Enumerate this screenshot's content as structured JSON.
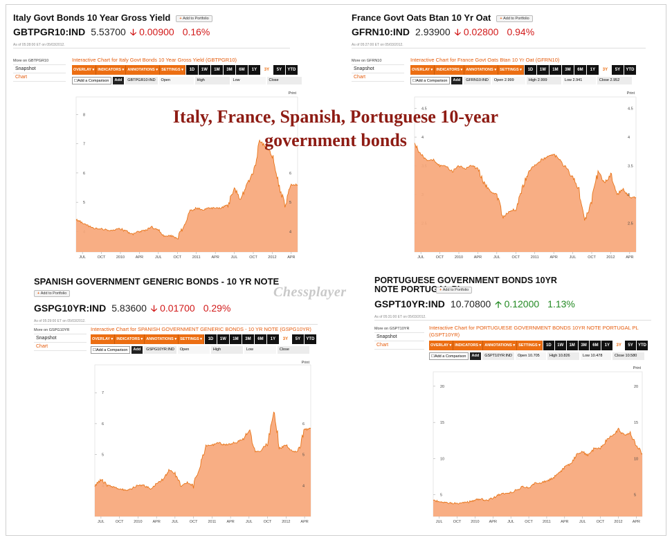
{
  "overlay_title": "Italy, France, Spanish, Portuguese 10-year government bonds",
  "watermark": "Chessplayer",
  "colors": {
    "accent": "#ec6e12",
    "fill": "#f7a77a",
    "line": "#e8751a",
    "down": "#d21a1a",
    "up": "#238a23",
    "title": "#8e1c14"
  },
  "ui": {
    "add_to_portfolio": "Add to Portfolio",
    "snapshot": "Snapshot",
    "chart": "Chart",
    "print": "Print",
    "add_comparison": "Add a Comparison",
    "add": "Add",
    "toolbar": [
      "OVERLAY",
      "INDICATORS",
      "ANNOTATIONS",
      "SETTINGS"
    ],
    "ranges": [
      "1D",
      "1W",
      "1M",
      "3M",
      "6M",
      "1Y",
      "3Y",
      "5Y",
      "YTD"
    ],
    "active_range": "3Y"
  },
  "panels": [
    {
      "title": "Italy Govt Bonds 10 Year Gross Yield",
      "symbol": "GBTPGR10:IND",
      "price": "5.53700",
      "change": "0.00900",
      "pct": "0.16%",
      "direction": "down",
      "asof": "As of 05:28:00 ET on 05/03/2012.",
      "more": "More on GBTPGR10",
      "chart_link": "Interactive Chart for Italy Govt Bonds 10 Year Gross Yield (GBTPGR10)",
      "cmp_symbol": "GBTPGR10:IND",
      "open": "Open",
      "high": "High",
      "low": "Low",
      "close": "Close",
      "ticks_y": [
        "8",
        "7",
        "6",
        "5",
        "4"
      ],
      "ticks_x": [
        "JUL",
        "OCT",
        "2010",
        "APR",
        "JUL",
        "OCT",
        "2011",
        "APR",
        "JUL",
        "OCT",
        "2012",
        "APR"
      ],
      "right_labels": [
        "6",
        "5",
        "4"
      ]
    },
    {
      "title": "France Govt Oats Btan 10 Yr Oat",
      "symbol": "GFRN10:IND",
      "price": "2.93900",
      "change": "0.02800",
      "pct": "0.94%",
      "direction": "down",
      "asof": "As of 05:27:00 ET on 05/03/2012.",
      "more": "More on GFRN10",
      "chart_link": "Interactive Chart for France Govt Oats Btan 10 Yr Oat (GFRN10)",
      "cmp_symbol": "GFRN10:IND",
      "open": "Open 2.999",
      "high": "High 2.999",
      "low": "Low 2.941",
      "close": "Close 2.952",
      "ticks_y": [
        "4.5",
        "4",
        "3.5",
        "3",
        "2.5"
      ],
      "ticks_x": [
        "JUL",
        "OCT",
        "2010",
        "APR",
        "JUL",
        "OCT",
        "2011",
        "APR",
        "JUL",
        "OCT",
        "2012",
        "APR"
      ],
      "right_labels": [
        "4.5",
        "4",
        "3.5",
        "3",
        "2.5"
      ]
    },
    {
      "title": "SPANISH GOVERNMENT GENERIC BONDS - 10 YR NOTE",
      "symbol": "GSPG10YR:IND",
      "price": "5.83600",
      "change": "0.01700",
      "pct": "0.29%",
      "direction": "down",
      "asof": "As of 05:29:00 ET on 05/03/2012.",
      "more": "More on GSPG10YR",
      "chart_link": "Interactive Chart for SPANISH GOVERNMENT GENERIC BONDS - 10 YR NOTE (GSPG10YR)",
      "cmp_symbol": "GSPG10YR:IND",
      "open": "Open",
      "high": "High",
      "low": "Low",
      "close": "Close",
      "ticks_y": [
        "7",
        "6",
        "5",
        "4"
      ],
      "ticks_x": [
        "JUL",
        "OCT",
        "2010",
        "APR",
        "JUL",
        "OCT",
        "2011",
        "APR",
        "JUL",
        "OCT",
        "2012",
        "APR"
      ],
      "right_labels": [
        "6",
        "5",
        "4"
      ]
    },
    {
      "title": "PORTUGUESE GOVERNMENT BONDS 10YR NOTE PORTUGAL PL",
      "symbol": "GSPT10YR:IND",
      "price": "10.70800",
      "change": "0.12000",
      "pct": "1.13%",
      "direction": "up",
      "asof": "As of 05:31:00 ET on 05/03/2012.",
      "more": "More on GSPT10YR",
      "chart_link": "Interactive Chart for PORTUGUESE GOVERNMENT BONDS 10YR NOTE PORTUGAL PL (GSPT10YR)",
      "cmp_symbol": "GSPT10YR:IND",
      "open": "Open 10.705",
      "high": "High 10.826",
      "low": "Low 10.478",
      "close": "Close 10.580",
      "ticks_y": [
        "20",
        "15",
        "10",
        "5"
      ],
      "ticks_x": [
        "JUL",
        "OCT",
        "2010",
        "APR",
        "JUL",
        "OCT",
        "2011",
        "APR",
        "JUL",
        "OCT",
        "2012",
        "APR"
      ],
      "right_labels": [
        "20",
        "15",
        "10",
        "5"
      ]
    }
  ],
  "chart_data": [
    {
      "type": "area",
      "series_name": "GBTPGR10:IND",
      "ylim": [
        3.3,
        8.6
      ],
      "x": [
        "2009-06",
        "2009-07",
        "2009-08",
        "2009-09",
        "2009-10",
        "2009-11",
        "2009-12",
        "2010-01",
        "2010-02",
        "2010-03",
        "2010-04",
        "2010-05",
        "2010-06",
        "2010-07",
        "2010-08",
        "2010-09",
        "2010-10",
        "2010-11",
        "2010-12",
        "2011-01",
        "2011-02",
        "2011-03",
        "2011-04",
        "2011-05",
        "2011-06",
        "2011-07",
        "2011-08",
        "2011-09",
        "2011-10",
        "2011-11",
        "2011-12",
        "2012-01",
        "2012-02",
        "2012-03",
        "2012-04",
        "2012-05"
      ],
      "y": [
        4.4,
        4.3,
        4.2,
        4.1,
        4.1,
        4.05,
        4.05,
        4.1,
        4.0,
        3.9,
        4.0,
        4.05,
        4.15,
        4.05,
        3.85,
        3.85,
        3.75,
        4.2,
        4.7,
        4.8,
        4.75,
        4.8,
        4.8,
        4.8,
        4.9,
        5.5,
        5.1,
        5.6,
        6.0,
        7.1,
        6.9,
        6.6,
        5.6,
        4.9,
        5.6,
        5.6
      ]
    },
    {
      "type": "area",
      "series_name": "GFRN10:IND",
      "ylim": [
        2.0,
        4.7
      ],
      "x": [
        "2009-06",
        "2009-07",
        "2009-08",
        "2009-09",
        "2009-10",
        "2009-11",
        "2009-12",
        "2010-01",
        "2010-02",
        "2010-03",
        "2010-04",
        "2010-05",
        "2010-06",
        "2010-07",
        "2010-08",
        "2010-09",
        "2010-10",
        "2010-11",
        "2010-12",
        "2011-01",
        "2011-02",
        "2011-03",
        "2011-04",
        "2011-05",
        "2011-06",
        "2011-07",
        "2011-08",
        "2011-09",
        "2011-10",
        "2011-11",
        "2011-12",
        "2012-01",
        "2012-02",
        "2012-03",
        "2012-04",
        "2012-05"
      ],
      "y": [
        3.9,
        3.7,
        3.6,
        3.6,
        3.5,
        3.5,
        3.4,
        3.5,
        3.45,
        3.5,
        3.45,
        3.2,
        3.05,
        3.0,
        2.6,
        2.7,
        2.75,
        3.1,
        3.4,
        3.5,
        3.6,
        3.65,
        3.7,
        3.6,
        3.45,
        3.3,
        3.05,
        2.55,
        2.9,
        3.4,
        3.2,
        3.35,
        3.0,
        3.1,
        2.95,
        2.95
      ]
    },
    {
      "type": "area",
      "series_name": "GSPG10YR:IND",
      "ylim": [
        3.0,
        7.9
      ],
      "x": [
        "2009-06",
        "2009-07",
        "2009-08",
        "2009-09",
        "2009-10",
        "2009-11",
        "2009-12",
        "2010-01",
        "2010-02",
        "2010-03",
        "2010-04",
        "2010-05",
        "2010-06",
        "2010-07",
        "2010-08",
        "2010-09",
        "2010-10",
        "2010-11",
        "2010-12",
        "2011-01",
        "2011-02",
        "2011-03",
        "2011-04",
        "2011-05",
        "2011-06",
        "2011-07",
        "2011-08",
        "2011-09",
        "2011-10",
        "2011-11",
        "2011-12",
        "2012-01",
        "2012-02",
        "2012-03",
        "2012-04",
        "2012-05"
      ],
      "y": [
        4.0,
        4.2,
        4.0,
        3.95,
        3.9,
        3.85,
        3.9,
        4.0,
        4.0,
        3.9,
        4.05,
        4.2,
        4.5,
        4.4,
        4.0,
        4.1,
        4.0,
        4.6,
        5.3,
        5.3,
        5.4,
        5.3,
        5.35,
        5.4,
        5.5,
        5.8,
        5.1,
        5.1,
        5.4,
        6.5,
        5.2,
        5.3,
        5.1,
        5.1,
        5.8,
        5.85
      ]
    },
    {
      "type": "area",
      "series_name": "GSPT10YR:IND",
      "ylim": [
        2.0,
        22.0
      ],
      "x": [
        "2009-06",
        "2009-07",
        "2009-08",
        "2009-09",
        "2009-10",
        "2009-11",
        "2009-12",
        "2010-01",
        "2010-02",
        "2010-03",
        "2010-04",
        "2010-05",
        "2010-06",
        "2010-07",
        "2010-08",
        "2010-09",
        "2010-10",
        "2010-11",
        "2010-12",
        "2011-01",
        "2011-02",
        "2011-03",
        "2011-04",
        "2011-05",
        "2011-06",
        "2011-07",
        "2011-08",
        "2011-09",
        "2011-10",
        "2011-11",
        "2011-12",
        "2012-01",
        "2012-02",
        "2012-03",
        "2012-04",
        "2012-05"
      ],
      "y": [
        4.2,
        4.1,
        3.9,
        3.85,
        3.8,
        3.9,
        4.0,
        4.3,
        4.4,
        4.2,
        4.6,
        5.0,
        5.2,
        5.3,
        5.7,
        6.1,
        6.0,
        6.6,
        6.6,
        6.9,
        7.3,
        7.9,
        8.8,
        9.3,
        10.6,
        11.0,
        10.4,
        11.5,
        11.4,
        12.5,
        13.2,
        14.0,
        13.2,
        13.6,
        11.8,
        10.7
      ]
    }
  ]
}
